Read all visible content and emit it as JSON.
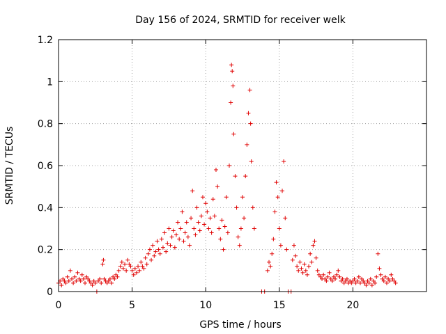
{
  "chart_data": {
    "type": "scatter",
    "title": "Day 156 of 2024, SRMTID for receiver welk",
    "xlabel": "GPS time / hours",
    "ylabel": "SRMTID / TECUs",
    "xlim": [
      0,
      25
    ],
    "ylim": [
      0,
      1.2
    ],
    "xticks": [
      0,
      5,
      10,
      15,
      20
    ],
    "xtick_labels": [
      "0",
      "5",
      "10",
      "15",
      "20"
    ],
    "yticks": [
      0,
      0.2,
      0.4,
      0.6,
      0.8,
      1.0,
      1.2
    ],
    "ytick_labels": [
      "0",
      "0.2",
      "0.4",
      "0.6",
      "0.8",
      "1",
      "1.2"
    ],
    "grid": true,
    "marker": "+",
    "marker_color": "#e00000",
    "series": [
      {
        "name": "SRMTID",
        "points": [
          [
            0.0,
            0.04
          ],
          [
            0.1,
            0.05
          ],
          [
            0.2,
            0.03
          ],
          [
            0.3,
            0.06
          ],
          [
            0.4,
            0.05
          ],
          [
            0.5,
            0.04
          ],
          [
            0.6,
            0.07
          ],
          [
            0.7,
            0.05
          ],
          [
            0.8,
            0.1
          ],
          [
            0.9,
            0.06
          ],
          [
            1.0,
            0.04
          ],
          [
            1.1,
            0.07
          ],
          [
            1.2,
            0.05
          ],
          [
            1.3,
            0.09
          ],
          [
            1.4,
            0.06
          ],
          [
            1.5,
            0.05
          ],
          [
            1.6,
            0.08
          ],
          [
            1.7,
            0.06
          ],
          [
            1.8,
            0.04
          ],
          [
            1.9,
            0.07
          ],
          [
            2.0,
            0.06
          ],
          [
            2.1,
            0.05
          ],
          [
            2.2,
            0.04
          ],
          [
            2.3,
            0.03
          ],
          [
            2.4,
            0.05
          ],
          [
            2.5,
            0.04
          ],
          [
            2.6,
            0.0
          ],
          [
            2.7,
            0.05
          ],
          [
            2.8,
            0.06
          ],
          [
            2.9,
            0.04
          ],
          [
            3.0,
            0.13
          ],
          [
            3.05,
            0.15
          ],
          [
            3.1,
            0.06
          ],
          [
            3.2,
            0.05
          ],
          [
            3.3,
            0.04
          ],
          [
            3.4,
            0.05
          ],
          [
            3.5,
            0.06
          ],
          [
            3.6,
            0.04
          ],
          [
            3.7,
            0.07
          ],
          [
            3.8,
            0.06
          ],
          [
            3.9,
            0.08
          ],
          [
            4.0,
            0.07
          ],
          [
            4.1,
            0.1
          ],
          [
            4.2,
            0.12
          ],
          [
            4.3,
            0.14
          ],
          [
            4.4,
            0.11
          ],
          [
            4.5,
            0.13
          ],
          [
            4.6,
            0.1
          ],
          [
            4.7,
            0.15
          ],
          [
            4.8,
            0.13
          ],
          [
            4.9,
            0.12
          ],
          [
            5.0,
            0.1
          ],
          [
            5.1,
            0.08
          ],
          [
            5.2,
            0.11
          ],
          [
            5.3,
            0.09
          ],
          [
            5.4,
            0.12
          ],
          [
            5.5,
            0.1
          ],
          [
            5.6,
            0.14
          ],
          [
            5.7,
            0.12
          ],
          [
            5.8,
            0.11
          ],
          [
            5.9,
            0.16
          ],
          [
            6.0,
            0.13
          ],
          [
            6.1,
            0.18
          ],
          [
            6.2,
            0.2
          ],
          [
            6.3,
            0.15
          ],
          [
            6.4,
            0.22
          ],
          [
            6.5,
            0.17
          ],
          [
            6.6,
            0.19
          ],
          [
            6.7,
            0.24
          ],
          [
            6.8,
            0.2
          ],
          [
            6.9,
            0.18
          ],
          [
            7.0,
            0.25
          ],
          [
            7.1,
            0.21
          ],
          [
            7.2,
            0.28
          ],
          [
            7.3,
            0.19
          ],
          [
            7.4,
            0.23
          ],
          [
            7.5,
            0.3
          ],
          [
            7.6,
            0.22
          ],
          [
            7.7,
            0.26
          ],
          [
            7.8,
            0.29
          ],
          [
            7.9,
            0.21
          ],
          [
            8.0,
            0.27
          ],
          [
            8.1,
            0.33
          ],
          [
            8.2,
            0.25
          ],
          [
            8.3,
            0.3
          ],
          [
            8.4,
            0.38
          ],
          [
            8.5,
            0.24
          ],
          [
            8.6,
            0.28
          ],
          [
            8.7,
            0.33
          ],
          [
            8.8,
            0.26
          ],
          [
            8.9,
            0.22
          ],
          [
            9.0,
            0.35
          ],
          [
            9.1,
            0.48
          ],
          [
            9.2,
            0.3
          ],
          [
            9.3,
            0.27
          ],
          [
            9.4,
            0.4
          ],
          [
            9.5,
            0.33
          ],
          [
            9.6,
            0.29
          ],
          [
            9.7,
            0.36
          ],
          [
            9.8,
            0.45
          ],
          [
            9.9,
            0.32
          ],
          [
            10.0,
            0.42
          ],
          [
            10.1,
            0.38
          ],
          [
            10.2,
            0.3
          ],
          [
            10.3,
            0.35
          ],
          [
            10.4,
            0.28
          ],
          [
            10.5,
            0.44
          ],
          [
            10.6,
            0.36
          ],
          [
            10.7,
            0.58
          ],
          [
            10.8,
            0.5
          ],
          [
            10.9,
            0.3
          ],
          [
            11.0,
            0.25
          ],
          [
            11.1,
            0.34
          ],
          [
            11.2,
            0.2
          ],
          [
            11.3,
            0.31
          ],
          [
            11.4,
            0.45
          ],
          [
            11.5,
            0.28
          ],
          [
            11.6,
            0.6
          ],
          [
            11.7,
            0.9
          ],
          [
            11.75,
            1.08
          ],
          [
            11.8,
            1.05
          ],
          [
            11.85,
            0.98
          ],
          [
            11.9,
            0.75
          ],
          [
            12.0,
            0.55
          ],
          [
            12.1,
            0.4
          ],
          [
            12.2,
            0.26
          ],
          [
            12.3,
            0.22
          ],
          [
            12.4,
            0.3
          ],
          [
            12.5,
            0.45
          ],
          [
            12.6,
            0.35
          ],
          [
            12.7,
            0.55
          ],
          [
            12.8,
            0.7
          ],
          [
            12.9,
            0.85
          ],
          [
            13.0,
            0.96
          ],
          [
            13.05,
            0.8
          ],
          [
            13.1,
            0.62
          ],
          [
            13.2,
            0.4
          ],
          [
            13.3,
            0.3
          ],
          [
            13.8,
            0.0
          ],
          [
            14.0,
            0.0
          ],
          [
            14.2,
            0.1
          ],
          [
            14.3,
            0.14
          ],
          [
            14.4,
            0.12
          ],
          [
            14.5,
            0.18
          ],
          [
            14.6,
            0.25
          ],
          [
            14.7,
            0.38
          ],
          [
            14.8,
            0.52
          ],
          [
            14.9,
            0.45
          ],
          [
            15.0,
            0.3
          ],
          [
            15.1,
            0.22
          ],
          [
            15.2,
            0.48
          ],
          [
            15.3,
            0.62
          ],
          [
            15.4,
            0.35
          ],
          [
            15.5,
            0.2
          ],
          [
            15.6,
            0.0
          ],
          [
            15.8,
            0.0
          ],
          [
            15.9,
            0.15
          ],
          [
            16.0,
            0.22
          ],
          [
            16.1,
            0.17
          ],
          [
            16.2,
            0.12
          ],
          [
            16.3,
            0.1
          ],
          [
            16.4,
            0.14
          ],
          [
            16.5,
            0.11
          ],
          [
            16.6,
            0.09
          ],
          [
            16.7,
            0.13
          ],
          [
            16.8,
            0.1
          ],
          [
            16.9,
            0.08
          ],
          [
            17.0,
            0.12
          ],
          [
            17.1,
            0.18
          ],
          [
            17.2,
            0.14
          ],
          [
            17.3,
            0.22
          ],
          [
            17.4,
            0.24
          ],
          [
            17.5,
            0.16
          ],
          [
            17.6,
            0.1
          ],
          [
            17.7,
            0.08
          ],
          [
            17.8,
            0.07
          ],
          [
            17.9,
            0.06
          ],
          [
            18.0,
            0.08
          ],
          [
            18.1,
            0.06
          ],
          [
            18.2,
            0.05
          ],
          [
            18.3,
            0.07
          ],
          [
            18.4,
            0.09
          ],
          [
            18.5,
            0.06
          ],
          [
            18.6,
            0.05
          ],
          [
            18.7,
            0.07
          ],
          [
            18.8,
            0.06
          ],
          [
            18.9,
            0.08
          ],
          [
            19.0,
            0.1
          ],
          [
            19.1,
            0.07
          ],
          [
            19.2,
            0.05
          ],
          [
            19.3,
            0.06
          ],
          [
            19.4,
            0.04
          ],
          [
            19.5,
            0.05
          ],
          [
            19.6,
            0.06
          ],
          [
            19.7,
            0.04
          ],
          [
            19.8,
            0.05
          ],
          [
            19.9,
            0.04
          ],
          [
            20.0,
            0.05
          ],
          [
            20.1,
            0.06
          ],
          [
            20.2,
            0.04
          ],
          [
            20.3,
            0.05
          ],
          [
            20.4,
            0.07
          ],
          [
            20.5,
            0.04
          ],
          [
            20.6,
            0.06
          ],
          [
            20.7,
            0.05
          ],
          [
            20.8,
            0.04
          ],
          [
            20.9,
            0.03
          ],
          [
            21.0,
            0.05
          ],
          [
            21.1,
            0.04
          ],
          [
            21.2,
            0.06
          ],
          [
            21.3,
            0.03
          ],
          [
            21.4,
            0.05
          ],
          [
            21.5,
            0.04
          ],
          [
            21.6,
            0.07
          ],
          [
            21.7,
            0.18
          ],
          [
            21.8,
            0.11
          ],
          [
            21.9,
            0.08
          ],
          [
            22.0,
            0.06
          ],
          [
            22.1,
            0.05
          ],
          [
            22.2,
            0.07
          ],
          [
            22.3,
            0.04
          ],
          [
            22.4,
            0.06
          ],
          [
            22.5,
            0.05
          ],
          [
            22.6,
            0.08
          ],
          [
            22.7,
            0.06
          ],
          [
            22.8,
            0.05
          ],
          [
            22.9,
            0.04
          ]
        ]
      }
    ]
  }
}
